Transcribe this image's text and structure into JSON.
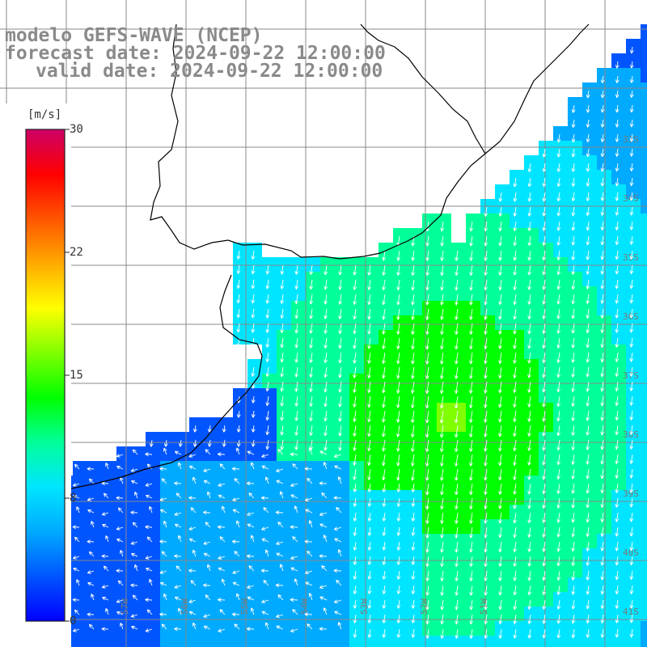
{
  "titles": {
    "model": "modelo GEFS-WAVE (NCEP)",
    "forecast": "forecast date: 2024-09-22 12:00:00",
    "valid": "valid date: 2024-09-22 12:00:00"
  },
  "colorbar": {
    "unit": "[m/s]",
    "ticks": [
      "30",
      "22",
      "15",
      "8",
      "0"
    ],
    "min": 0,
    "max": 30,
    "colors": [
      "#0000ff",
      "#0055ff",
      "#00aaff",
      "#00e5ff",
      "#00ff99",
      "#00ff00",
      "#7fff00",
      "#ffff00",
      "#ffaa00",
      "#ff5500",
      "#ff0000",
      "#cc0066"
    ]
  },
  "grid": {
    "lat_labels": [
      "33S",
      "34S",
      "35S",
      "36S",
      "37S",
      "38S",
      "39S",
      "40S",
      "41S"
    ],
    "lon_labels": [
      "59W",
      "58W",
      "57W",
      "56W",
      "55W",
      "54W",
      "53W",
      "52W",
      "51W"
    ]
  },
  "map": {
    "land_color": "#ffffff",
    "gridline_color": "#888888",
    "coast_color": "#000000",
    "arrow_color": "#ffffff"
  }
}
